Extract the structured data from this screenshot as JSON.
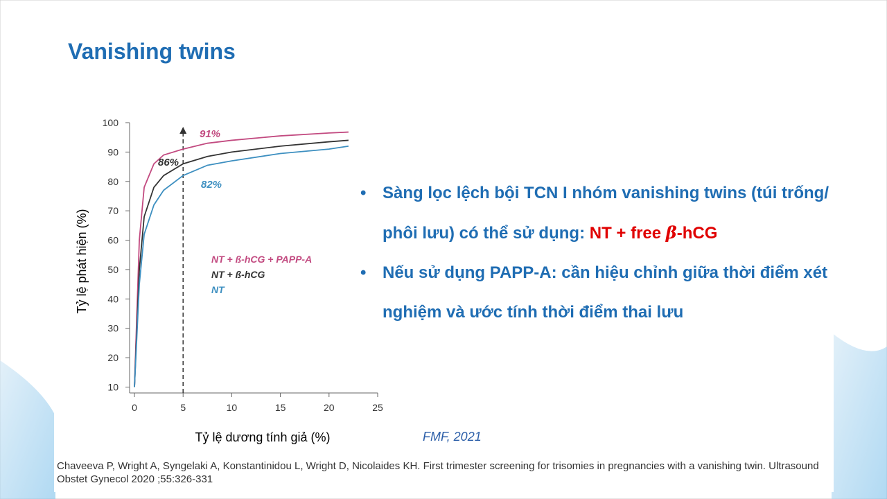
{
  "slide": {
    "title": "Vanishing twins",
    "bullets": [
      [
        "Sàng lọc lệch bội TCN I nhóm vanishing twins (túi trống/ phôi lưu) có thể sử dụng: ",
        "NT + free ",
        "β",
        "-hCG"
      ],
      [
        "Nếu sử dụng PAPP-A: cần hiệu chỉnh giữa thời điểm xét nghiệm và ước tính thời điểm thai lưu"
      ]
    ],
    "source": "FMF, 2021",
    "citation": "Chaveeva P, Wright A, Syngelaki A, Konstantinidou L, Wright D, Nicolaides KH. First trimester screening for trisomies in pregnancies with a vanishing twin. Ultrasound Obstet Gynecol 2020 ;55:326-331"
  },
  "chart_data": {
    "type": "line",
    "xlabel": "Tỷ lệ dương tính giả (%)",
    "ylabel": "Tỷ lệ phát hiện (%)",
    "x": [
      0,
      0.5,
      1,
      2,
      3,
      5,
      7.5,
      10,
      15,
      20,
      22
    ],
    "series": [
      {
        "name": "NT + ß-hCG + PAPP-A",
        "color": "#c24a80",
        "values": [
          10,
          60,
          78,
          86,
          89,
          91,
          93,
          94,
          95.5,
          96.5,
          96.8
        ]
      },
      {
        "name": "NT + ß-hCG",
        "color": "#333333",
        "values": [
          10,
          50,
          68,
          78,
          82,
          86,
          88.5,
          90,
          92,
          93.5,
          94
        ]
      },
      {
        "name": "NT",
        "color": "#3d8fc0",
        "values": [
          10,
          45,
          62,
          72,
          77,
          82,
          85.5,
          87,
          89.5,
          91,
          92
        ]
      }
    ],
    "reference_x": 5,
    "annotations": [
      "91%",
      "86%",
      "82%"
    ],
    "xlim": [
      -0.5,
      25
    ],
    "xticks": [
      0,
      5,
      10,
      15,
      20,
      25
    ],
    "ylim": [
      8,
      100
    ],
    "yticks": [
      10,
      20,
      30,
      40,
      50,
      60,
      70,
      80,
      90,
      100
    ]
  }
}
